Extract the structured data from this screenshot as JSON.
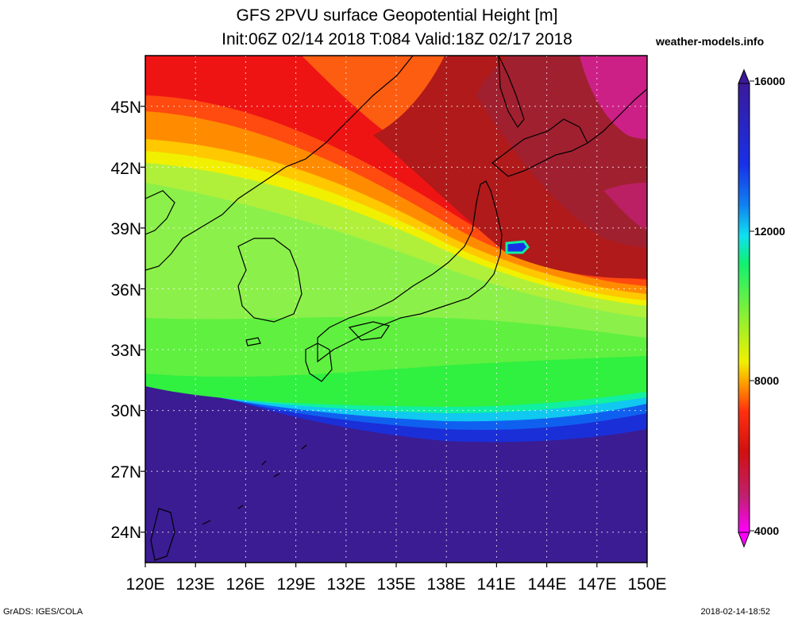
{
  "title": {
    "line1": "GFS 2PVU surface Geopotential Height [m]",
    "line2": "Init:06Z 02/14 2018 T:084 Valid:18Z 02/17 2018"
  },
  "site": "weather-models.info",
  "map": {
    "lat_labels": [
      "45N",
      "42N",
      "39N",
      "36N",
      "33N",
      "30N",
      "27N",
      "24N"
    ],
    "lon_labels": [
      "120E",
      "123E",
      "126E",
      "129E",
      "132E",
      "135E",
      "138E",
      "141E",
      "144E",
      "147E",
      "150E"
    ],
    "lon_range": [
      120,
      150
    ],
    "lat_range": [
      22.5,
      47.5
    ],
    "grid": true
  },
  "colorbar": {
    "labels": [
      "16000",
      "12000",
      "8000",
      "4000"
    ],
    "min": 4000,
    "max": 16000,
    "colors": [
      "#ff00ff",
      "#d020b0",
      "#a03040",
      "#b01010",
      "#d01010",
      "#ee1010",
      "#ff3010",
      "#ff6a00",
      "#ff9a00",
      "#ffd000",
      "#f0f000",
      "#d2f51e",
      "#b0f03a",
      "#8cf04a",
      "#64f048",
      "#30f040",
      "#10f070",
      "#10f0c0",
      "#10e0f0",
      "#10b0f0",
      "#1080f0",
      "#1058f0",
      "#1830e8",
      "#1818d0",
      "#2818b0",
      "#3a1a9a",
      "#4a1d8a"
    ]
  },
  "footer": {
    "left": "GrADS: IGES/COLA",
    "right": "2018-02-14-18:52"
  }
}
